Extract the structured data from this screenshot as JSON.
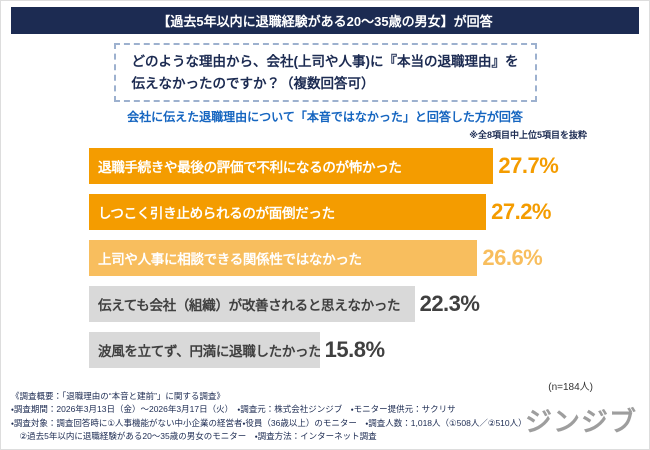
{
  "page": {
    "header": "【過去5年以内に退職経験がある20〜35歳の男女】が回答",
    "question": {
      "line1": "どのような理由から、会社(上司や人事)に『本当の退職理由』を",
      "line2": "伝えなかったのですか？（複数回答可）"
    },
    "subtitle": "会社に伝えた退職理由について「本音ではなかった」と回答した方が回答",
    "note": "※全8項目中上位5項目を抜粋",
    "sample": "(n=184人)"
  },
  "chart_data": {
    "type": "bar",
    "orientation": "horizontal",
    "title": "どのような理由から、会社(上司や人事)に『本当の退職理由』を伝えなかったのですか？（複数回答可）",
    "categories": [
      "退職手続きや最後の評価で不利になるのが怖かった",
      "しつこく引き止められるのが面倒だった",
      "上司や人事に相談できる関係性ではなかった",
      "伝えても会社（組織）が改善されると思えなかった",
      "波風を立てず、円満に退職したかった"
    ],
    "values": [
      27.7,
      27.2,
      26.6,
      22.3,
      15.8
    ],
    "value_labels": [
      "27.7%",
      "27.2%",
      "26.6%",
      "22.3%",
      "15.8%"
    ],
    "bar_colors": [
      "#f49c00",
      "#f49c00",
      "#f8be5e",
      "#d9d9d9",
      "#d9d9d9"
    ],
    "label_colors": [
      "#ffffff",
      "#ffffff",
      "#ffffff",
      "#404040",
      "#404040"
    ],
    "value_colors": [
      "#f49c00",
      "#f49c00",
      "#f8be5e",
      "#404040",
      "#404040"
    ],
    "xlim": [
      0,
      30
    ],
    "legend": "none",
    "grid": false,
    "sample_size": 184
  },
  "footer": {
    "line1": "《調査概要：「退職理由の“本音と建前”」に関する調査》",
    "line2": "・調査期間：2026年3月13日（金）〜2026年3月17日（火）　・調査元：株式会社ジンジブ　・モニター提供元：サクリサ",
    "line3": "・調査対象：調査回答時に①人事機能がない中小企業の経営者・役員（36歳以上）のモニター　・調査人数：1,018人（①508人／②510人）",
    "line4": "　②過去5年以内に退職経験がある20〜35歳の男女のモニター　・調査方法：インターネット調査",
    "logo": "ジンジブ"
  },
  "colors": {
    "navy": "#1c2b52",
    "blue": "#1565c0",
    "orange": "#f49c00",
    "light_orange": "#f8be5e",
    "gray_bar": "#d9d9d9",
    "logo_gray": "#9e9e9e"
  }
}
